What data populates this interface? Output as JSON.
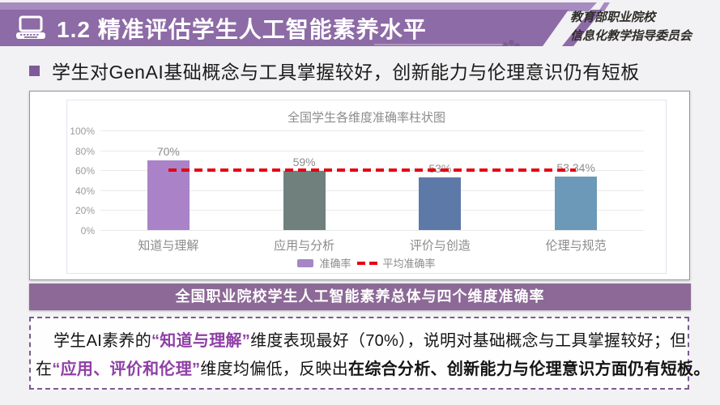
{
  "header": {
    "title": "1.2 精准评估学生人工智能素养水平",
    "org_line1": "教育部职业院校",
    "org_line2": "信息化教学指导委员会",
    "bar_color": "#8d6ba6",
    "strip_color": "#a68cc1"
  },
  "subtitle": {
    "text": "学生对GenAI基础概念与工具掌握较好，创新能力与伦理意识仍有短板",
    "bullet_color": "#7e5a9b"
  },
  "chart_data": {
    "type": "bar",
    "title": "全国学生各维度准确率柱状图",
    "categories": [
      "知道与理解",
      "应用与分析",
      "评价与创造",
      "伦理与规范"
    ],
    "values": [
      70,
      59,
      53,
      53.34
    ],
    "value_labels": [
      "70%",
      "59%",
      "53%",
      "53.34%"
    ],
    "bar_colors": [
      "#aa82c8",
      "#6f807d",
      "#5d79a7",
      "#6c99b7"
    ],
    "average_line": {
      "value": 60,
      "color": "#e60012"
    },
    "legend": [
      {
        "label": "准确率",
        "swatch_color": "#a487c4",
        "type": "bar"
      },
      {
        "label": "平均准确率",
        "swatch_color": "#e60012",
        "type": "dashed-line"
      }
    ],
    "ylabel": "",
    "xlabel": "",
    "ylim": [
      0,
      100
    ],
    "yticks": [
      "0%",
      "20%",
      "40%",
      "60%",
      "80%",
      "100%"
    ],
    "grid": true,
    "legend_position": "bottom"
  },
  "banner": {
    "text": "全国职业院校学生人工智能素养总体与四个维度准确率",
    "bg_color": "#8c6996"
  },
  "note": {
    "border_color": "#7c5c90",
    "line1": [
      {
        "text": "学生AI素养的",
        "style": "normal"
      },
      {
        "text": "“知道与理解”",
        "style": "purple-bold"
      },
      {
        "text": "维度表现最好（70%），说明对基础概念与工具掌握较好；但",
        "style": "normal"
      }
    ],
    "line2": [
      {
        "text": "在",
        "style": "normal"
      },
      {
        "text": "“应用、评价和伦理”",
        "style": "purple-bold"
      },
      {
        "text": "维度均偏低，反映出",
        "style": "normal"
      },
      {
        "text": "在综合分析、创新能力与伦理意识方面仍有短板。",
        "style": "bold"
      }
    ]
  }
}
